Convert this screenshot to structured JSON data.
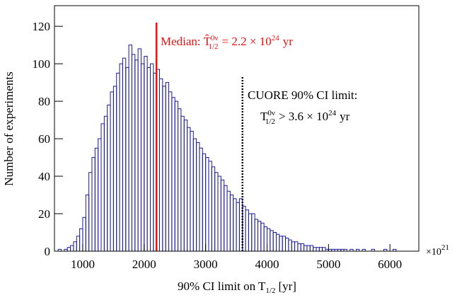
{
  "chart_data": {
    "type": "histogram",
    "y_label": "Number of experiments",
    "x_label": {
      "text": "90% CI limit on T",
      "sub": "1/2",
      "unit": "[yr]"
    },
    "x_multiplier": {
      "base": "×10",
      "exp": "21"
    },
    "bins": [
      550,
      600,
      650,
      700,
      750,
      800,
      850,
      900,
      950,
      1000,
      1050,
      1100,
      1150,
      1200,
      1250,
      1300,
      1350,
      1400,
      1450,
      1500,
      1550,
      1600,
      1650,
      1700,
      1750,
      1800,
      1850,
      1900,
      1950,
      2000,
      2050,
      2100,
      2150,
      2200,
      2250,
      2300,
      2350,
      2400,
      2450,
      2500,
      2550,
      2600,
      2650,
      2700,
      2750,
      2800,
      2850,
      2900,
      2950,
      3000,
      3050,
      3100,
      3150,
      3200,
      3250,
      3300,
      3350,
      3400,
      3450,
      3500,
      3550,
      3600,
      3650,
      3700,
      3750,
      3800,
      3850,
      3900,
      3950,
      4000,
      4050,
      4100,
      4150,
      4200,
      4250,
      4300,
      4350,
      4400,
      4450,
      4500,
      4550,
      4600,
      4650,
      4700,
      4750,
      4800,
      4850,
      4900,
      4950,
      5000,
      5050,
      5100,
      5150,
      5200,
      5250,
      5300,
      5350,
      5400,
      5450,
      5500,
      5550,
      5600,
      5650,
      5700,
      5750,
      5800,
      5850,
      5900,
      5950,
      6000,
      6050,
      6100,
      6150,
      6200,
      6250,
      6300,
      6350,
      6400,
      6450
    ],
    "values": [
      0,
      1,
      0,
      1,
      2,
      3,
      5,
      8,
      12,
      18,
      30,
      42,
      50,
      55,
      60,
      68,
      72,
      78,
      85,
      88,
      95,
      100,
      103,
      98,
      110,
      105,
      102,
      108,
      100,
      104,
      98,
      100,
      95,
      97,
      92,
      88,
      90,
      85,
      82,
      80,
      76,
      72,
      70,
      66,
      64,
      60,
      58,
      55,
      52,
      50,
      48,
      45,
      42,
      40,
      38,
      35,
      32,
      30,
      28,
      26,
      28,
      24,
      22,
      20,
      20,
      17,
      16,
      15,
      13,
      12,
      11,
      10,
      9,
      8,
      8,
      7,
      6,
      5,
      5,
      4,
      4,
      3,
      3,
      3,
      2,
      2,
      2,
      2,
      1,
      1,
      1,
      1,
      1,
      1,
      1,
      0,
      1,
      0,
      1,
      0,
      1,
      0,
      0,
      1,
      0,
      0,
      0,
      1,
      0,
      0,
      1,
      0,
      0,
      0,
      0,
      0,
      0,
      0
    ],
    "color": "#1a1a9a",
    "xlim": [
      540,
      6470
    ],
    "ylim": [
      0,
      131
    ],
    "xticks": [
      1000,
      2000,
      3000,
      4000,
      5000,
      6000
    ],
    "yticks": [
      0,
      20,
      40,
      60,
      80,
      100,
      120
    ],
    "vlines": [
      {
        "x": 2200,
        "top": 122,
        "color": "#ee1111",
        "style": "solid"
      },
      {
        "x": 3600,
        "top": 93,
        "color": "#000000",
        "style": "dotted"
      }
    ],
    "median_label": {
      "prefix": "Median:",
      "symbol": "T̂",
      "sup": "0ν",
      "sub": "1/2",
      "rest": "= 2.2 × 10",
      "exp": "24",
      "unit": "yr"
    },
    "cuore_label": {
      "line1": "CUORE 90% CI limit:",
      "symbol": "T",
      "sup": "0ν",
      "sub": "1/2",
      "rest": "> 3.6 × 10",
      "exp": "24",
      "unit": "yr"
    }
  }
}
